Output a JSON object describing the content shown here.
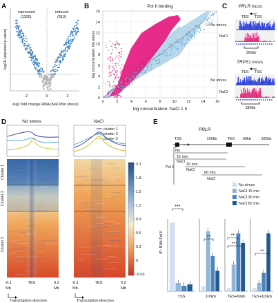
{
  "panels": {
    "A": {
      "label": "A",
      "repressed": "repressed",
      "repressed_n": "(1100)",
      "induced": "induced",
      "induced_n": "(913)",
      "ylabel": "-log10 (adjusted  p-value)",
      "xlabel": "log2 fold change RNA (NaCl/No stress)",
      "xticks": [
        "-2",
        "0",
        "2"
      ]
    },
    "B": {
      "label": "B",
      "title": "Pol II binding",
      "ylabel": "log concentration: No stress",
      "xlabel": "log concentration: NaCl 1 h",
      "xticks": [
        "0",
        "2",
        "4",
        "6",
        "8",
        "10",
        "12",
        "14",
        "16"
      ],
      "yticks": [
        "0",
        "2",
        "4",
        "6",
        "8",
        "10",
        "12",
        "14",
        "16"
      ]
    },
    "C": {
      "label": "C",
      "locus1": "PRLR locus",
      "locus2": "TRPS1 locus",
      "tes": "TES",
      "tss": "TSS",
      "no_stress": "No stress",
      "nacl": "NaCl",
      "scale1": "160kb",
      "scale2": "180kb"
    },
    "D": {
      "label": "D",
      "left_title": "No stress",
      "right_title": "NaCl",
      "legend": [
        "cluster 1",
        "cluster 2",
        "cluster 3"
      ],
      "clusters": [
        "Cluster 1",
        "Cluster 2",
        "Cluster 3"
      ],
      "x_left": "-0.1",
      "x_mid": "TES",
      "x_right": "0.2",
      "mb": "Mb",
      "direction": "Transcription direction",
      "colorbar_ticks": [
        "2.1",
        "1.8",
        "1.5",
        "1.2",
        "0.9",
        "0.6",
        "0.3",
        "0",
        "-0.03"
      ]
    },
    "E": {
      "label": "E",
      "gene": "PRLR",
      "top_labels": [
        "TSS",
        "100kb",
        "TES",
        "60kb",
        "100kb"
      ],
      "pol2": "Pol II",
      "conditions": [
        "No",
        "15 min",
        "NaCl",
        "30 min",
        "NaCl",
        "60 min",
        "NaCl"
      ],
      "ylabel": "IP: RNA Pol II",
      "legend": [
        "No stress",
        "NaCl 15 min",
        "NaCl 30 min",
        "NaCl 60 min"
      ],
      "colors": [
        "#cfe0ee",
        "#8fb5d8",
        "#4f85bd",
        "#245a94"
      ],
      "groups": [
        "TSS",
        "100kb",
        "TES+60kb",
        "TES+100kb"
      ],
      "sig": [
        "***",
        "**",
        "**",
        "***",
        "**"
      ]
    }
  },
  "chart_data": [
    {
      "type": "bar",
      "categories": [
        "TSS",
        "100kb",
        "TES+60kb",
        "TES+100kb"
      ],
      "series": [
        {
          "name": "No stress",
          "values": [
            100,
            5,
            3,
            3
          ]
        },
        {
          "name": "NaCl 15 min",
          "values": [
            12,
            58,
            22,
            8
          ]
        },
        {
          "name": "NaCl 30 min",
          "values": [
            8,
            34,
            48,
            18
          ]
        },
        {
          "name": "NaCl 60 min",
          "values": [
            10,
            20,
            40,
            56
          ]
        }
      ],
      "title": "",
      "ylabel": "IP: RNA Pol II"
    }
  ]
}
